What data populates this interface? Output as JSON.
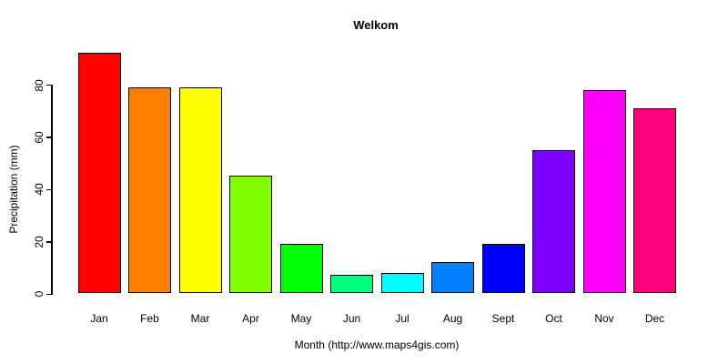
{
  "chart_data": {
    "type": "bar",
    "title": "Welkom",
    "xlabel": "Month (http://www.maps4gis.com)",
    "ylabel": "Precipitation (mm)",
    "categories": [
      "Jan",
      "Feb",
      "Mar",
      "Apr",
      "May",
      "Jun",
      "Jul",
      "Aug",
      "Sept",
      "Oct",
      "Nov",
      "Dec"
    ],
    "values": [
      92,
      79,
      79,
      45,
      19,
      7,
      8,
      12,
      19,
      55,
      78,
      71
    ],
    "bar_colors": [
      "#FF0000",
      "#FF8000",
      "#FFFF00",
      "#80FF00",
      "#00FF00",
      "#00FF80",
      "#00FFFF",
      "#0080FF",
      "#0000FF",
      "#8000FF",
      "#FF00FF",
      "#FF0080"
    ],
    "bar_border_color": "#000000",
    "yticks": [
      0,
      20,
      40,
      60,
      80
    ],
    "ylim": [
      0,
      92
    ],
    "grid": false,
    "legend": "none",
    "background_color": "#FFFFFF",
    "text_color": "#000000"
  }
}
